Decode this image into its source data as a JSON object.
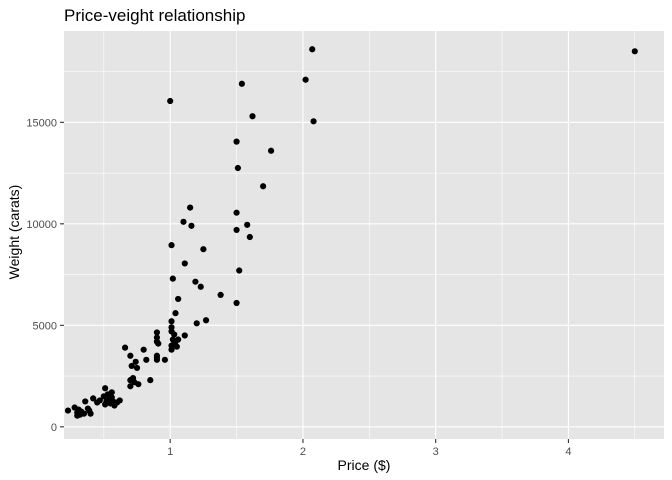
{
  "chart_data": {
    "type": "scatter",
    "title": "Price-veight relationship",
    "xlabel": "Price ($)",
    "ylabel": "Weight (carats)",
    "xlim": [
      0.2,
      4.72
    ],
    "ylim": [
      -600,
      19500
    ],
    "x_ticks": [
      1,
      2,
      3,
      4
    ],
    "x_tick_labels": [
      "1",
      "2",
      "3",
      "4"
    ],
    "y_ticks": [
      0,
      5000,
      10000,
      15000
    ],
    "y_tick_labels": [
      "0",
      "5000",
      "10000",
      "15000"
    ],
    "grid": true,
    "panel_background": "#e5e5e5",
    "grid_color": "#ffffff",
    "point_color": "#000000",
    "points": [
      {
        "x": 0.23,
        "y": 800
      },
      {
        "x": 0.28,
        "y": 950
      },
      {
        "x": 0.3,
        "y": 700
      },
      {
        "x": 0.3,
        "y": 550
      },
      {
        "x": 0.31,
        "y": 850
      },
      {
        "x": 0.32,
        "y": 600
      },
      {
        "x": 0.33,
        "y": 750
      },
      {
        "x": 0.35,
        "y": 650
      },
      {
        "x": 0.36,
        "y": 1250
      },
      {
        "x": 0.38,
        "y": 900
      },
      {
        "x": 0.39,
        "y": 800
      },
      {
        "x": 0.4,
        "y": 650
      },
      {
        "x": 0.42,
        "y": 1400
      },
      {
        "x": 0.45,
        "y": 1200
      },
      {
        "x": 0.47,
        "y": 1300
      },
      {
        "x": 0.5,
        "y": 1500
      },
      {
        "x": 0.51,
        "y": 1100
      },
      {
        "x": 0.51,
        "y": 1900
      },
      {
        "x": 0.52,
        "y": 1250
      },
      {
        "x": 0.53,
        "y": 1600
      },
      {
        "x": 0.54,
        "y": 1350
      },
      {
        "x": 0.55,
        "y": 1150
      },
      {
        "x": 0.56,
        "y": 1700
      },
      {
        "x": 0.56,
        "y": 1450
      },
      {
        "x": 0.57,
        "y": 1250
      },
      {
        "x": 0.58,
        "y": 1050
      },
      {
        "x": 0.6,
        "y": 1200
      },
      {
        "x": 0.62,
        "y": 1300
      },
      {
        "x": 0.66,
        "y": 3900
      },
      {
        "x": 0.7,
        "y": 3500
      },
      {
        "x": 0.7,
        "y": 2300
      },
      {
        "x": 0.7,
        "y": 2000
      },
      {
        "x": 0.71,
        "y": 3000
      },
      {
        "x": 0.72,
        "y": 2400
      },
      {
        "x": 0.73,
        "y": 2200
      },
      {
        "x": 0.74,
        "y": 3200
      },
      {
        "x": 0.75,
        "y": 2900
      },
      {
        "x": 0.76,
        "y": 2100
      },
      {
        "x": 0.8,
        "y": 3800
      },
      {
        "x": 0.82,
        "y": 3300
      },
      {
        "x": 0.85,
        "y": 2300
      },
      {
        "x": 0.9,
        "y": 4650
      },
      {
        "x": 0.9,
        "y": 4400
      },
      {
        "x": 0.9,
        "y": 4200
      },
      {
        "x": 0.9,
        "y": 3500
      },
      {
        "x": 0.9,
        "y": 3400
      },
      {
        "x": 0.9,
        "y": 3300
      },
      {
        "x": 0.91,
        "y": 4100
      },
      {
        "x": 0.96,
        "y": 3300
      },
      {
        "x": 1.0,
        "y": 16050
      },
      {
        "x": 1.01,
        "y": 8950
      },
      {
        "x": 1.01,
        "y": 5200
      },
      {
        "x": 1.01,
        "y": 4900
      },
      {
        "x": 1.01,
        "y": 4700
      },
      {
        "x": 1.01,
        "y": 4000
      },
      {
        "x": 1.01,
        "y": 3800
      },
      {
        "x": 1.02,
        "y": 7300
      },
      {
        "x": 1.02,
        "y": 4300
      },
      {
        "x": 1.03,
        "y": 4550
      },
      {
        "x": 1.03,
        "y": 4100
      },
      {
        "x": 1.04,
        "y": 5600
      },
      {
        "x": 1.04,
        "y": 4200
      },
      {
        "x": 1.05,
        "y": 3950
      },
      {
        "x": 1.06,
        "y": 6300
      },
      {
        "x": 1.06,
        "y": 4300
      },
      {
        "x": 1.1,
        "y": 10100
      },
      {
        "x": 1.11,
        "y": 8050
      },
      {
        "x": 1.11,
        "y": 4500
      },
      {
        "x": 1.15,
        "y": 10800
      },
      {
        "x": 1.16,
        "y": 9900
      },
      {
        "x": 1.19,
        "y": 7150
      },
      {
        "x": 1.2,
        "y": 5100
      },
      {
        "x": 1.23,
        "y": 6900
      },
      {
        "x": 1.25,
        "y": 8750
      },
      {
        "x": 1.27,
        "y": 5250
      },
      {
        "x": 1.38,
        "y": 6500
      },
      {
        "x": 1.5,
        "y": 14050
      },
      {
        "x": 1.5,
        "y": 10550
      },
      {
        "x": 1.5,
        "y": 9700
      },
      {
        "x": 1.5,
        "y": 6100
      },
      {
        "x": 1.51,
        "y": 12750
      },
      {
        "x": 1.52,
        "y": 7700
      },
      {
        "x": 1.54,
        "y": 16900
      },
      {
        "x": 1.58,
        "y": 9950
      },
      {
        "x": 1.6,
        "y": 9350
      },
      {
        "x": 1.62,
        "y": 15300
      },
      {
        "x": 1.7,
        "y": 11850
      },
      {
        "x": 1.76,
        "y": 13600
      },
      {
        "x": 2.02,
        "y": 17100
      },
      {
        "x": 2.07,
        "y": 18600
      },
      {
        "x": 2.08,
        "y": 15050
      },
      {
        "x": 4.5,
        "y": 18500
      }
    ]
  }
}
